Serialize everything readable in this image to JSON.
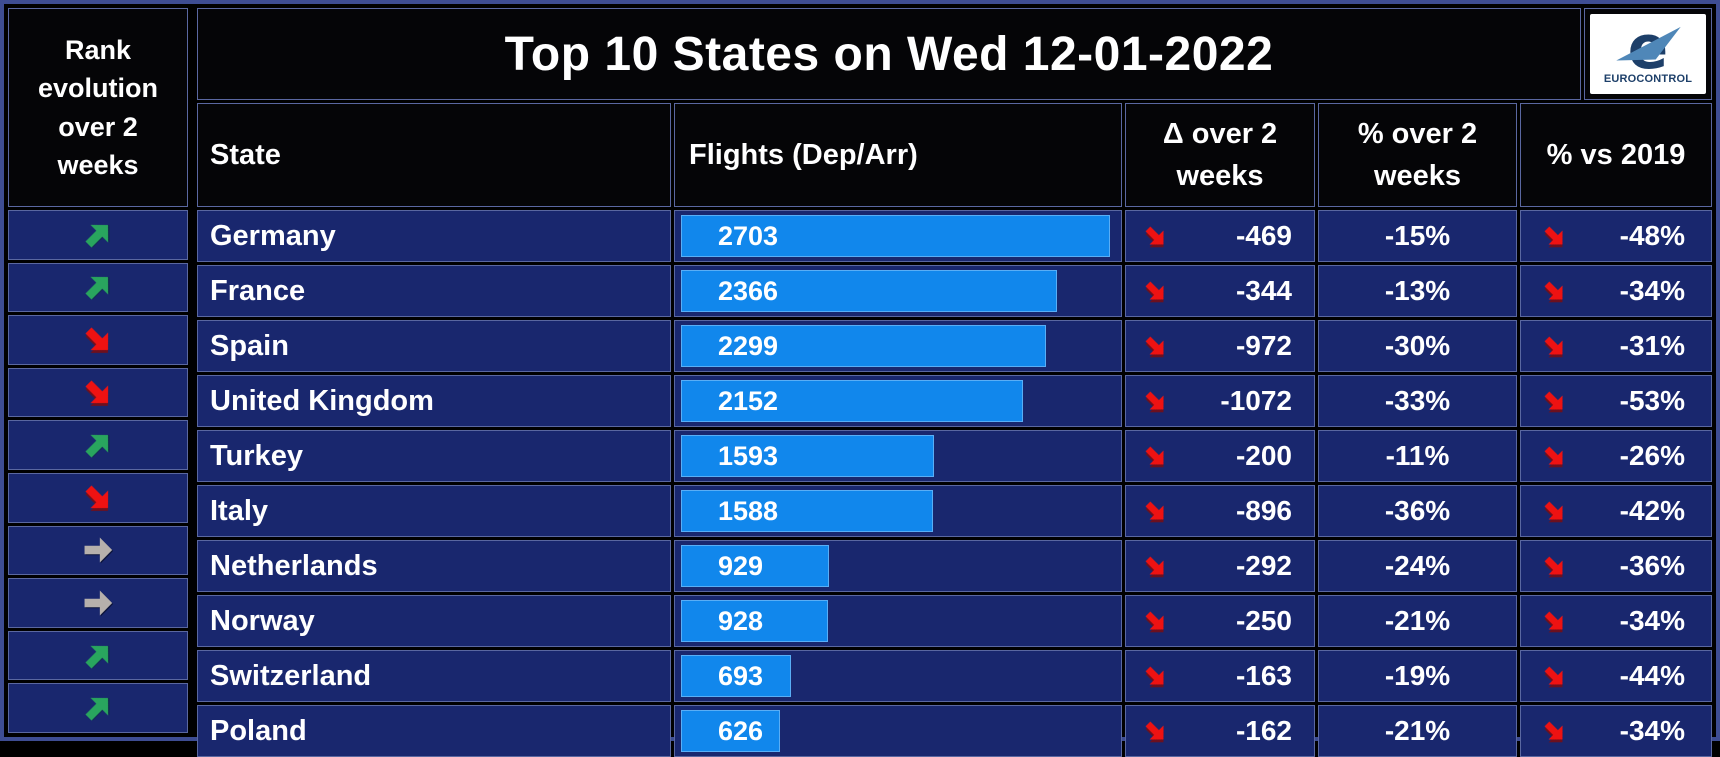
{
  "title": "Top 10  States on Wed 12-01-2022",
  "logo": {
    "brand": "EUROCONTROL"
  },
  "header": {
    "rank": "Rank evolution over 2 weeks",
    "state": "State",
    "flights": "Flights (Dep/Arr)",
    "delta": "Δ over 2 weeks",
    "pct": "% over 2 weeks",
    "vs2019": "% vs 2019"
  },
  "colors": {
    "row_bg": "#19276e",
    "header_bg": "#050507",
    "grid_line": "#5a67a0",
    "bar_blue": "#1187ec",
    "arrow_green": "#29a55e",
    "arrow_red": "#ee1212",
    "arrow_gray": "#b6b0ac",
    "logo_navy": "#1d3f69",
    "logo_steel_blue": "#4f87b8",
    "text": "#ffffff"
  },
  "chart_data": {
    "type": "table",
    "title": "Top 10  States on Wed 12-01-2022",
    "columns": [
      "Rank evolution over 2 weeks",
      "State",
      "Flights (Dep/Arr)",
      "Δ over 2 weeks",
      "% over 2 weeks",
      "% vs 2019"
    ],
    "bar_column": "Flights (Dep/Arr)",
    "bar_fill_note": "bar width proportional to flights, max value fills ~98% of column",
    "rows": [
      {
        "state": "Germany",
        "rank_trend": "up",
        "flights": 2703,
        "delta_2w": "-469",
        "delta_trend": "down",
        "pct_2w": "-15%",
        "vs2019_trend": "down",
        "pct_vs_2019": "-48%"
      },
      {
        "state": "France",
        "rank_trend": "up",
        "flights": 2366,
        "delta_2w": "-344",
        "delta_trend": "down",
        "pct_2w": "-13%",
        "vs2019_trend": "down",
        "pct_vs_2019": "-34%"
      },
      {
        "state": "Spain",
        "rank_trend": "down",
        "flights": 2299,
        "delta_2w": "-972",
        "delta_trend": "down",
        "pct_2w": "-30%",
        "vs2019_trend": "down",
        "pct_vs_2019": "-31%"
      },
      {
        "state": "United Kingdom",
        "rank_trend": "down",
        "flights": 2152,
        "delta_2w": "-1072",
        "delta_trend": "down",
        "pct_2w": "-33%",
        "vs2019_trend": "down",
        "pct_vs_2019": "-53%"
      },
      {
        "state": "Turkey",
        "rank_trend": "up",
        "flights": 1593,
        "delta_2w": "-200",
        "delta_trend": "down",
        "pct_2w": "-11%",
        "vs2019_trend": "down",
        "pct_vs_2019": "-26%"
      },
      {
        "state": "Italy",
        "rank_trend": "down",
        "flights": 1588,
        "delta_2w": "-896",
        "delta_trend": "down",
        "pct_2w": "-36%",
        "vs2019_trend": "down",
        "pct_vs_2019": "-42%"
      },
      {
        "state": "Netherlands",
        "rank_trend": "flat",
        "flights": 929,
        "delta_2w": "-292",
        "delta_trend": "down",
        "pct_2w": "-24%",
        "vs2019_trend": "down",
        "pct_vs_2019": "-36%"
      },
      {
        "state": "Norway",
        "rank_trend": "flat",
        "flights": 928,
        "delta_2w": "-250",
        "delta_trend": "down",
        "pct_2w": "-21%",
        "vs2019_trend": "down",
        "pct_vs_2019": "-34%"
      },
      {
        "state": "Switzerland",
        "rank_trend": "up",
        "flights": 693,
        "delta_2w": "-163",
        "delta_trend": "down",
        "pct_2w": "-19%",
        "vs2019_trend": "down",
        "pct_vs_2019": "-44%"
      },
      {
        "state": "Poland",
        "rank_trend": "up",
        "flights": 626,
        "delta_2w": "-162",
        "delta_trend": "down",
        "pct_2w": "-21%",
        "vs2019_trend": "down",
        "pct_vs_2019": "-34%"
      }
    ]
  }
}
